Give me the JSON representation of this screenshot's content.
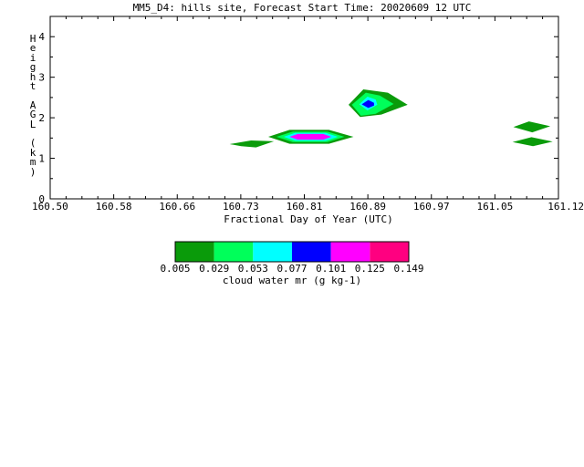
{
  "chart_data": {
    "type": "contour",
    "title": "MM5_D4: hills site,  Forecast Start Time: 20020609 12 UTC",
    "xlabel": "Fractional Day of Year (UTC)",
    "ylabel": "Height AGL (km)",
    "xlim": [
      160.5,
      161.12
    ],
    "ylim": [
      0,
      4.5
    ],
    "x_ticks": [
      "160.50",
      "160.58",
      "160.66",
      "160.73",
      "160.81",
      "160.89",
      "160.97",
      "161.05",
      "161.12"
    ],
    "y_ticks": [
      "0",
      "1",
      "2",
      "3",
      "4"
    ],
    "colorbar": {
      "label": "cloud water mr (g kg-1)",
      "levels": [
        "0.005",
        "0.029",
        "0.053",
        "0.077",
        "0.101",
        "0.125",
        "0.149"
      ],
      "colors": [
        "#0a9b0a",
        "#00ff5a",
        "#00ffff",
        "#0000ff",
        "#ff00ff",
        "#ff0080"
      ]
    },
    "regions": [
      {
        "level": 0,
        "points": [
          [
            160.864,
            2.32
          ],
          [
            160.882,
            2.7
          ],
          [
            160.912,
            2.62
          ],
          [
            160.936,
            2.32
          ],
          [
            160.904,
            2.08
          ],
          [
            160.878,
            2.02
          ]
        ]
      },
      {
        "level": 1,
        "points": [
          [
            160.868,
            2.32
          ],
          [
            160.885,
            2.62
          ],
          [
            160.902,
            2.55
          ],
          [
            160.919,
            2.34
          ],
          [
            160.897,
            2.1
          ],
          [
            160.879,
            2.05
          ]
        ]
      },
      {
        "level": 2,
        "points": [
          [
            160.877,
            2.33
          ],
          [
            160.887,
            2.52
          ],
          [
            160.897,
            2.45
          ],
          [
            160.899,
            2.32
          ],
          [
            160.887,
            2.18
          ]
        ]
      },
      {
        "level": 3,
        "points": [
          [
            160.88,
            2.33
          ],
          [
            160.888,
            2.44
          ],
          [
            160.895,
            2.37
          ],
          [
            160.895,
            2.3
          ],
          [
            160.888,
            2.24
          ]
        ]
      },
      {
        "level": 0,
        "points": [
          [
            160.719,
            1.35
          ],
          [
            160.745,
            1.44
          ],
          [
            160.773,
            1.42
          ],
          [
            160.751,
            1.27
          ],
          [
            160.733,
            1.3
          ]
        ]
      },
      {
        "level": 0,
        "points": [
          [
            160.766,
            1.53
          ],
          [
            160.792,
            1.7
          ],
          [
            160.84,
            1.7
          ],
          [
            160.87,
            1.53
          ],
          [
            160.84,
            1.36
          ],
          [
            160.792,
            1.36
          ]
        ]
      },
      {
        "level": 1,
        "points": [
          [
            160.776,
            1.53
          ],
          [
            160.796,
            1.66
          ],
          [
            160.838,
            1.66
          ],
          [
            160.859,
            1.53
          ],
          [
            160.838,
            1.4
          ],
          [
            160.796,
            1.4
          ]
        ]
      },
      {
        "level": 2,
        "points": [
          [
            160.785,
            1.53
          ],
          [
            160.799,
            1.63
          ],
          [
            160.836,
            1.63
          ],
          [
            160.851,
            1.53
          ],
          [
            160.836,
            1.43
          ],
          [
            160.799,
            1.43
          ]
        ]
      },
      {
        "level": 4,
        "points": [
          [
            160.792,
            1.53
          ],
          [
            160.802,
            1.6
          ],
          [
            160.833,
            1.6
          ],
          [
            160.843,
            1.53
          ],
          [
            160.833,
            1.46
          ],
          [
            160.802,
            1.46
          ]
        ]
      },
      {
        "level": 0,
        "points": [
          [
            161.065,
            1.77
          ],
          [
            161.084,
            1.91
          ],
          [
            161.11,
            1.79
          ],
          [
            161.088,
            1.64
          ]
        ]
      },
      {
        "level": 0,
        "points": [
          [
            161.064,
            1.4
          ],
          [
            161.087,
            1.52
          ],
          [
            161.113,
            1.41
          ],
          [
            161.089,
            1.3
          ]
        ]
      }
    ]
  }
}
